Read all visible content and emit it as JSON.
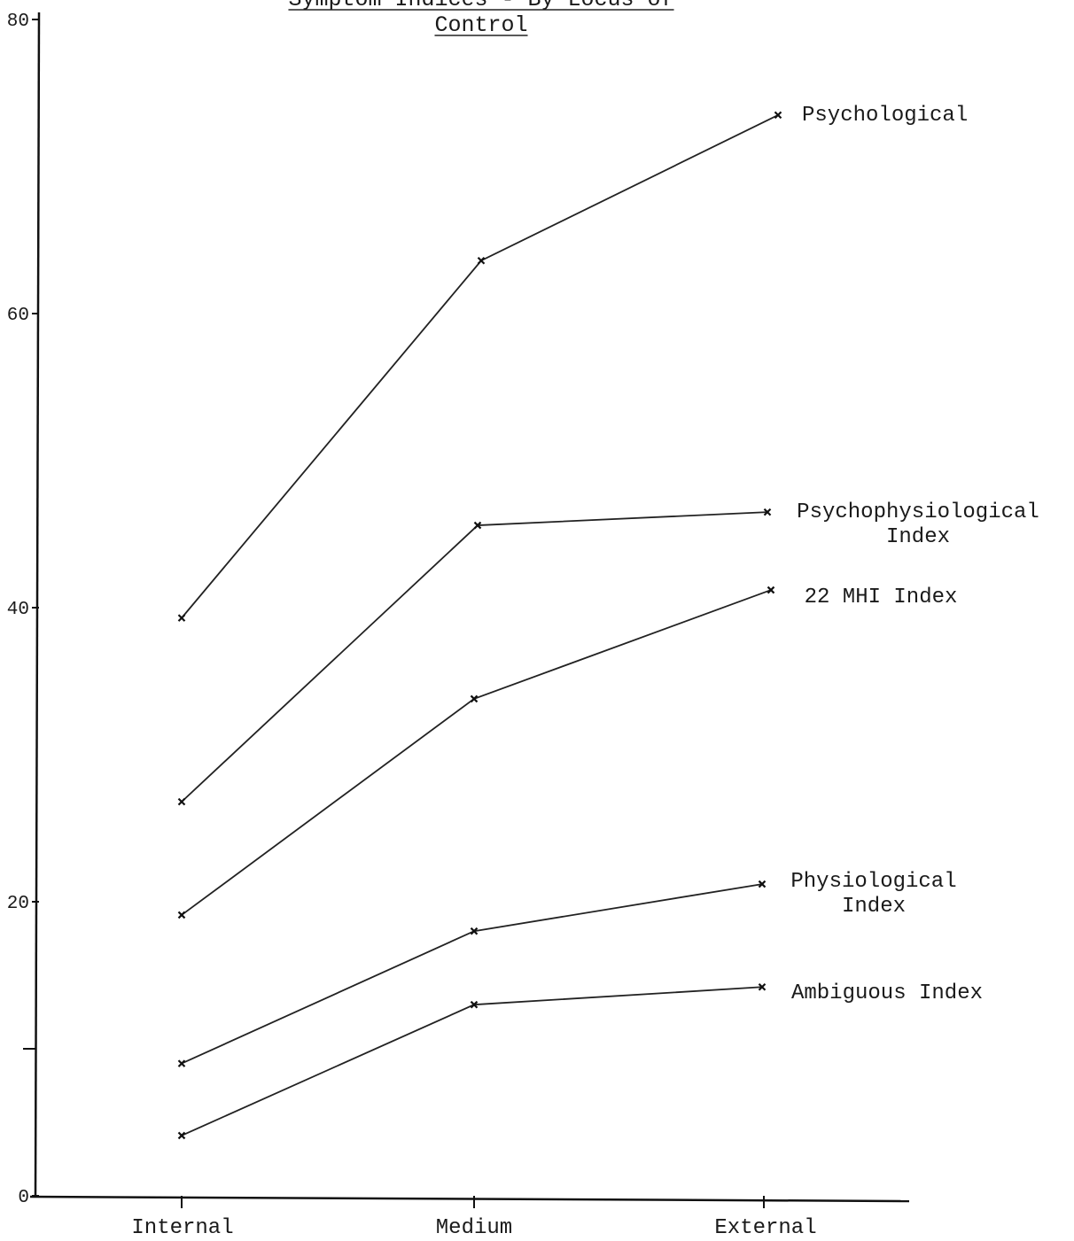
{
  "chart_data": {
    "type": "line",
    "title_lines": [
      "Symptom Indices - By Locus of",
      "Control"
    ],
    "xlabel": "",
    "ylabel": "",
    "categories": [
      "Internal",
      "Medium",
      "External"
    ],
    "ylim": [
      0,
      80
    ],
    "yticks": [
      0,
      20,
      40,
      60,
      80
    ],
    "grid": false,
    "series": [
      {
        "name": "Psychological",
        "label_lines": [
          "Psychological"
        ],
        "values": [
          39.3,
          63.6,
          73.5
        ]
      },
      {
        "name": "Psychophysiological Index",
        "label_lines": [
          "Psychophysiological",
          "Index"
        ],
        "values": [
          26.8,
          45.6,
          46.5
        ]
      },
      {
        "name": "22 MHI Index",
        "label_lines": [
          "22 MHI Index"
        ],
        "values": [
          19.1,
          33.8,
          41.2
        ]
      },
      {
        "name": "Physiological Index",
        "label_lines": [
          "Physiological",
          "Index"
        ],
        "values": [
          9.0,
          18.0,
          21.2
        ]
      },
      {
        "name": "Ambiguous Index",
        "label_lines": [
          "Ambiguous Index"
        ],
        "values": [
          4.1,
          13.0,
          14.2
        ]
      }
    ]
  }
}
